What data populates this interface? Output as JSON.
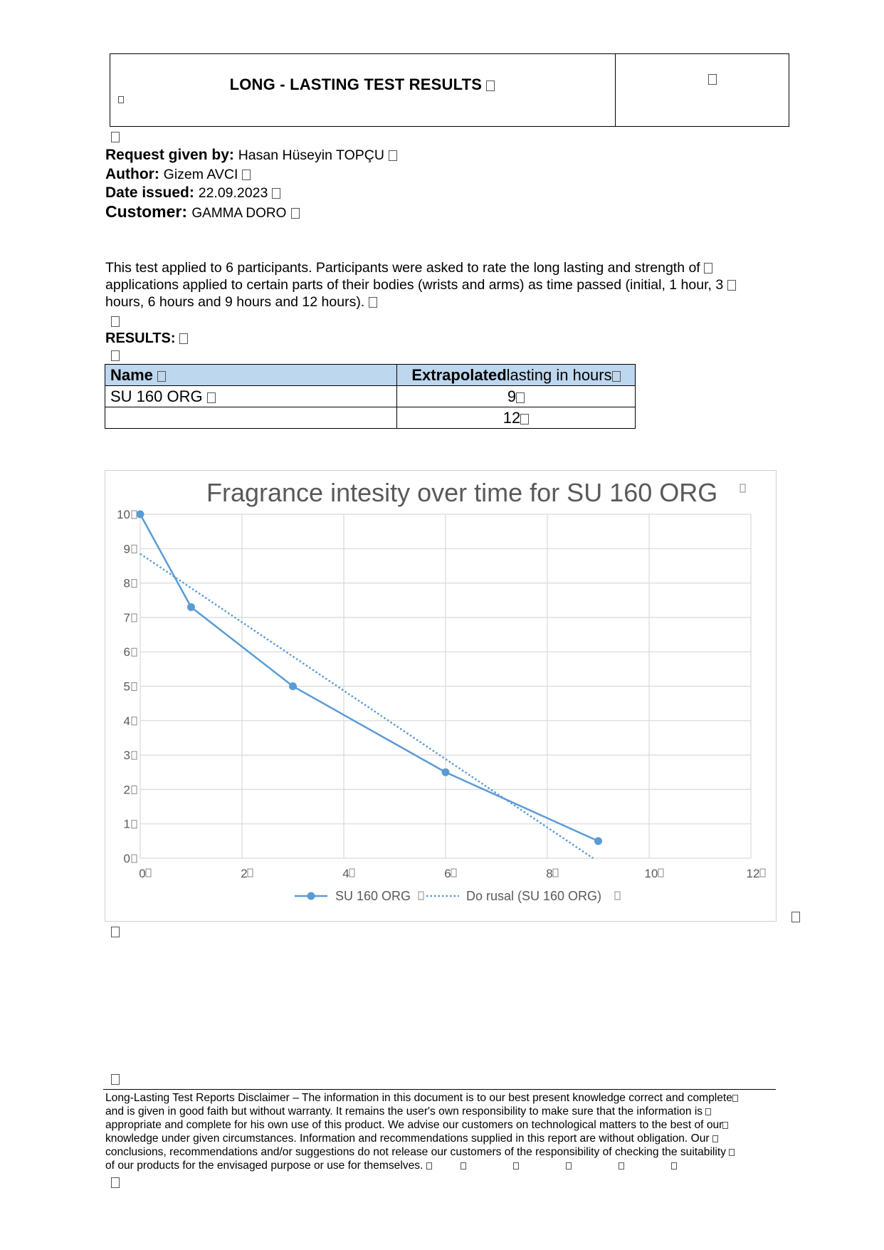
{
  "header": {
    "title": "LONG - LASTING TEST RESULTS"
  },
  "info": {
    "request_label": "Request given by:",
    "request_value": "Hasan Hüseyin TOPÇU",
    "author_label": "Author:",
    "author_value": "Gizem AVCI",
    "date_label": "Date issued:",
    "date_value": "22.09.2023",
    "customer_label": "Customer:",
    "customer_value": "GAMMA DORO"
  },
  "intro": {
    "line1": "This test applied to 6 participants. Participants were asked to rate the long lasting and strength of",
    "line2": "applications applied to certain parts of their bodies (wrists and arms) as time passed (initial, 1 hour, 3",
    "line3": "hours, 6 hours and 9 hours and 12 hours)."
  },
  "results": {
    "heading": "RESULTS:",
    "table": {
      "col_name": "Name",
      "col_value_bold": "Extrapolated",
      "col_value_rest": "lasting in hours",
      "rows": [
        {
          "name": "SU 160 ORG",
          "value": "9"
        },
        {
          "name": "",
          "value": "12"
        }
      ]
    }
  },
  "chart_data": {
    "type": "line",
    "title": "Fragrance intesity over time for SU 160 ORG",
    "xlabel": "",
    "ylabel": "",
    "xlim": [
      0,
      12
    ],
    "ylim": [
      0,
      10
    ],
    "x_ticks": [
      "0",
      "2",
      "4",
      "6",
      "8",
      "10",
      "12"
    ],
    "y_ticks": [
      "0",
      "1",
      "2",
      "3",
      "4",
      "5",
      "6",
      "7",
      "8",
      "9",
      "10"
    ],
    "grid": true,
    "legend_position": "bottom",
    "series": [
      {
        "name": "SU 160 ORG",
        "style": "solid-with-markers",
        "color": "#5b9bd5",
        "x": [
          0,
          1,
          3,
          6,
          9
        ],
        "y": [
          10,
          7.3,
          5,
          2.5,
          0.5
        ]
      },
      {
        "name": "Do rusal (SU 160 ORG)",
        "style": "dotted",
        "color": "#5b9bd5",
        "x": [
          0,
          8.9
        ],
        "y": [
          8.85,
          0
        ]
      }
    ]
  },
  "disclaimer": {
    "lines": [
      "Long-Lasting Test Reports Disclaimer – The information in this document is to our best present knowledge correct and complete",
      "and is given in good faith but without warranty. It remains the user's own responsibility to make sure that the information is",
      "appropriate and complete for his own use of this product. We advise our customers on technological matters to the best of our",
      "knowledge under given circumstances. Information and recommendations supplied in this report are without obligation. Our",
      "conclusions, recommendations and/or suggestions do not release our customers of the responsibility of checking the suitability",
      "of our products for the envisaged purpose or use for themselves."
    ]
  }
}
